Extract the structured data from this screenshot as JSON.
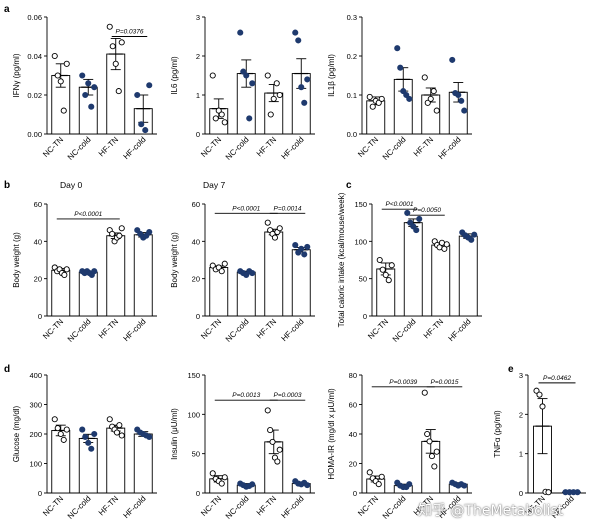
{
  "figure": {
    "colors": {
      "tn_dot": "#ffffff",
      "cold_dot": "#1f3a6e",
      "stroke": "#000000"
    },
    "watermark": "知乎 @TheMetabolist"
  },
  "chart_data": [
    {
      "id": "ifng",
      "panel_letter": "a",
      "type": "bar",
      "ylabel": "IFNγ (pg/ml)",
      "ylim": [
        0,
        0.06
      ],
      "yticks": [
        "0.00",
        "0.02",
        "0.04",
        "0.06"
      ],
      "categories": [
        "NC-TN",
        "NC-cold",
        "HF-TN",
        "HF-cold"
      ],
      "values": [
        0.03,
        0.024,
        0.041,
        0.013
      ],
      "errors": [
        0.006,
        0.004,
        0.008,
        0.007
      ],
      "points": [
        [
          0.04,
          0.03,
          0.027,
          0.012,
          0.036
        ],
        [
          0.03,
          0.02,
          0.026,
          0.014,
          0.024
        ],
        [
          0.055,
          0.045,
          0.036,
          0.022,
          0.047
        ],
        [
          0.02,
          0.005,
          0.002,
          0.025
        ]
      ],
      "annotations": [
        {
          "text": "P=0.0376",
          "from": 2,
          "to": 3,
          "y": 0.05
        }
      ]
    },
    {
      "id": "il6",
      "type": "bar",
      "ylabel": "IL6 (pg/ml)",
      "ylim": [
        0,
        3
      ],
      "yticks": [
        "0",
        "1",
        "2",
        "3"
      ],
      "categories": [
        "NC-TN",
        "NC-cold",
        "HF-TN",
        "HF-cold"
      ],
      "values": [
        0.65,
        1.55,
        1.05,
        1.55
      ],
      "errors": [
        0.25,
        0.35,
        0.22,
        0.38
      ],
      "points": [
        [
          1.5,
          0.4,
          0.6,
          0.5,
          0.3
        ],
        [
          2.6,
          1.6,
          1.5,
          0.4,
          1.3
        ],
        [
          1.5,
          0.5,
          0.9,
          1.3,
          1.0
        ],
        [
          2.6,
          2.4,
          1.2,
          0.8,
          1.4
        ]
      ],
      "annotations": []
    },
    {
      "id": "il1b",
      "type": "bar",
      "ylabel": "IL1β (pg/ml)",
      "ylim": [
        0,
        0.3
      ],
      "yticks": [
        "0.0",
        "0.1",
        "0.2",
        "0.3"
      ],
      "categories": [
        "NC-TN",
        "NC-cold",
        "HF-TN",
        "HF-cold"
      ],
      "values": [
        0.085,
        0.14,
        0.1,
        0.107
      ],
      "errors": [
        0.01,
        0.03,
        0.018,
        0.025
      ],
      "points": [
        [
          0.095,
          0.07,
          0.085,
          0.08,
          0.09
        ],
        [
          0.22,
          0.17,
          0.11,
          0.1,
          0.09
        ],
        [
          0.145,
          0.08,
          0.09,
          0.11,
          0.06
        ],
        [
          0.19,
          0.105,
          0.1,
          0.085,
          0.06
        ]
      ],
      "annotations": []
    },
    {
      "id": "bw-d0",
      "panel_letter": "b",
      "type": "bar",
      "title": "Day 0",
      "ylabel": "Body weight (g)",
      "ylim": [
        0,
        60
      ],
      "yticks": [
        "0",
        "20",
        "40",
        "60"
      ],
      "categories": [
        "NC-TN",
        "NC-cold",
        "HF-TN",
        "HF-cold"
      ],
      "values": [
        24.5,
        23.5,
        43,
        43.5
      ],
      "errors": [
        1.0,
        0.5,
        1.5,
        1.2
      ],
      "points": [
        [
          26,
          24,
          25,
          23,
          22,
          25
        ],
        [
          24,
          23,
          24,
          23,
          22,
          24
        ],
        [
          46,
          44,
          40,
          42,
          43,
          47
        ],
        [
          46,
          44,
          42,
          43,
          45
        ]
      ],
      "annotations": [
        {
          "text": "P<0.0001",
          "from": 0,
          "to": 2,
          "y": 52
        }
      ]
    },
    {
      "id": "bw-d7",
      "type": "bar",
      "title": "Day 7",
      "ylabel": "Body weight (g)",
      "ylim": [
        0,
        60
      ],
      "yticks": [
        "0",
        "20",
        "40",
        "60"
      ],
      "categories": [
        "NC-TN",
        "NC-cold",
        "HF-TN",
        "HF-cold"
      ],
      "values": [
        26,
        23.5,
        45,
        35.5
      ],
      "errors": [
        0.8,
        0.5,
        1.5,
        1.2
      ],
      "points": [
        [
          27,
          25,
          26,
          24,
          28
        ],
        [
          24,
          23,
          22,
          24,
          23
        ],
        [
          50,
          46,
          44,
          42,
          45,
          47
        ],
        [
          38,
          34,
          36,
          33,
          37
        ]
      ],
      "annotations": [
        {
          "text": "P<0.0001",
          "from": 0,
          "to": 2,
          "y": 55
        },
        {
          "text": "P=0.0014",
          "from": 2,
          "to": 3,
          "y": 55
        }
      ]
    },
    {
      "id": "caloric",
      "panel_letter": "c",
      "type": "bar",
      "ylabel": "Total caloric intake (kcal/mouse/week)",
      "ylim": [
        0,
        150
      ],
      "yticks": [
        "0",
        "50",
        "100",
        "150"
      ],
      "categories": [
        "NC-TN",
        "NC-cold",
        "HF-TN",
        "HF-cold"
      ],
      "values": [
        63,
        125,
        95,
        107
      ],
      "errors": [
        8,
        5,
        3,
        3
      ],
      "points": [
        [
          75,
          62,
          55,
          48,
          68
        ],
        [
          138,
          125,
          120,
          115,
          130
        ],
        [
          100,
          95,
          92,
          98,
          90,
          96
        ],
        [
          112,
          108,
          105,
          102,
          109
        ]
      ],
      "annotations": [
        {
          "text": "P<0.0001",
          "from": 0,
          "to": 1,
          "y": 143
        },
        {
          "text": "P=0.0050",
          "from": 1,
          "to": 2,
          "y": 135
        }
      ]
    },
    {
      "id": "glucose",
      "panel_letter": "d",
      "type": "bar",
      "ylabel": "Glucose (mg/dl)",
      "ylim": [
        0,
        400
      ],
      "yticks": [
        "0",
        "100",
        "200",
        "300",
        "400"
      ],
      "categories": [
        "NC-TN",
        "NC-cold",
        "HF-TN",
        "HF-cold"
      ],
      "values": [
        212,
        185,
        220,
        200
      ],
      "errors": [
        18,
        14,
        10,
        8
      ],
      "points": [
        [
          250,
          220,
          200,
          180,
          215
        ],
        [
          215,
          190,
          170,
          150,
          200
        ],
        [
          250,
          225,
          215,
          205,
          230,
          195
        ],
        [
          215,
          205,
          200,
          195,
          190
        ]
      ],
      "annotations": []
    },
    {
      "id": "insulin",
      "type": "bar",
      "ylabel": "Insulin (μU/ml)",
      "ylim": [
        0,
        150
      ],
      "yticks": [
        "0",
        "50",
        "100",
        "150"
      ],
      "categories": [
        "NC-TN",
        "NC-cold",
        "HF-TN",
        "HF-cold"
      ],
      "values": [
        18,
        10,
        65,
        12
      ],
      "errors": [
        4,
        2,
        15,
        2
      ],
      "points": [
        [
          25,
          18,
          15,
          12,
          20
        ],
        [
          12,
          10,
          8,
          9,
          11
        ],
        [
          105,
          80,
          65,
          45,
          40,
          55
        ],
        [
          15,
          12,
          11,
          13,
          10
        ]
      ],
      "annotations": [
        {
          "text": "P=0.0013",
          "from": 0,
          "to": 2,
          "y": 118
        },
        {
          "text": "P=0.0003",
          "from": 2,
          "to": 3,
          "y": 118
        }
      ]
    },
    {
      "id": "homa",
      "type": "bar",
      "ylabel": "HOMA-IR (mg/dl x μU/ml)",
      "ylim": [
        0,
        80
      ],
      "yticks": [
        "0",
        "20",
        "40",
        "60",
        "80"
      ],
      "categories": [
        "NC-TN",
        "NC-cold",
        "HF-TN",
        "HF-cold"
      ],
      "values": [
        9.5,
        5,
        35,
        6
      ],
      "errors": [
        2,
        1,
        8,
        1
      ],
      "points": [
        [
          14,
          10,
          8,
          6,
          11
        ],
        [
          7,
          5,
          4,
          4,
          6
        ],
        [
          68,
          40,
          35,
          25,
          18,
          28
        ],
        [
          7,
          6,
          5,
          6,
          5
        ]
      ],
      "annotations": [
        {
          "text": "P=0.0039",
          "from": 0,
          "to": 2,
          "y": 72
        },
        {
          "text": "P=0.0015",
          "from": 2,
          "to": 3,
          "y": 72
        }
      ]
    },
    {
      "id": "tnfa",
      "panel_letter": "e",
      "type": "bar",
      "ylabel": "TNFα (pg/ml)",
      "ylim": [
        0,
        3
      ],
      "yticks": [
        "0",
        "1",
        "2",
        "3"
      ],
      "categories": [
        "HF-TN",
        "HF-cold"
      ],
      "values": [
        1.7,
        0.02
      ],
      "errors": [
        0.7,
        0.01
      ],
      "points": [
        [
          2.6,
          2.5,
          2.2,
          0.03,
          0.02
        ],
        [
          0.02,
          0.02,
          0.02,
          0.02
        ]
      ],
      "cold_first_index": 1,
      "annotations": [
        {
          "text": "P=0.0462",
          "from": 0,
          "to": 1,
          "y": 2.8
        }
      ]
    }
  ]
}
